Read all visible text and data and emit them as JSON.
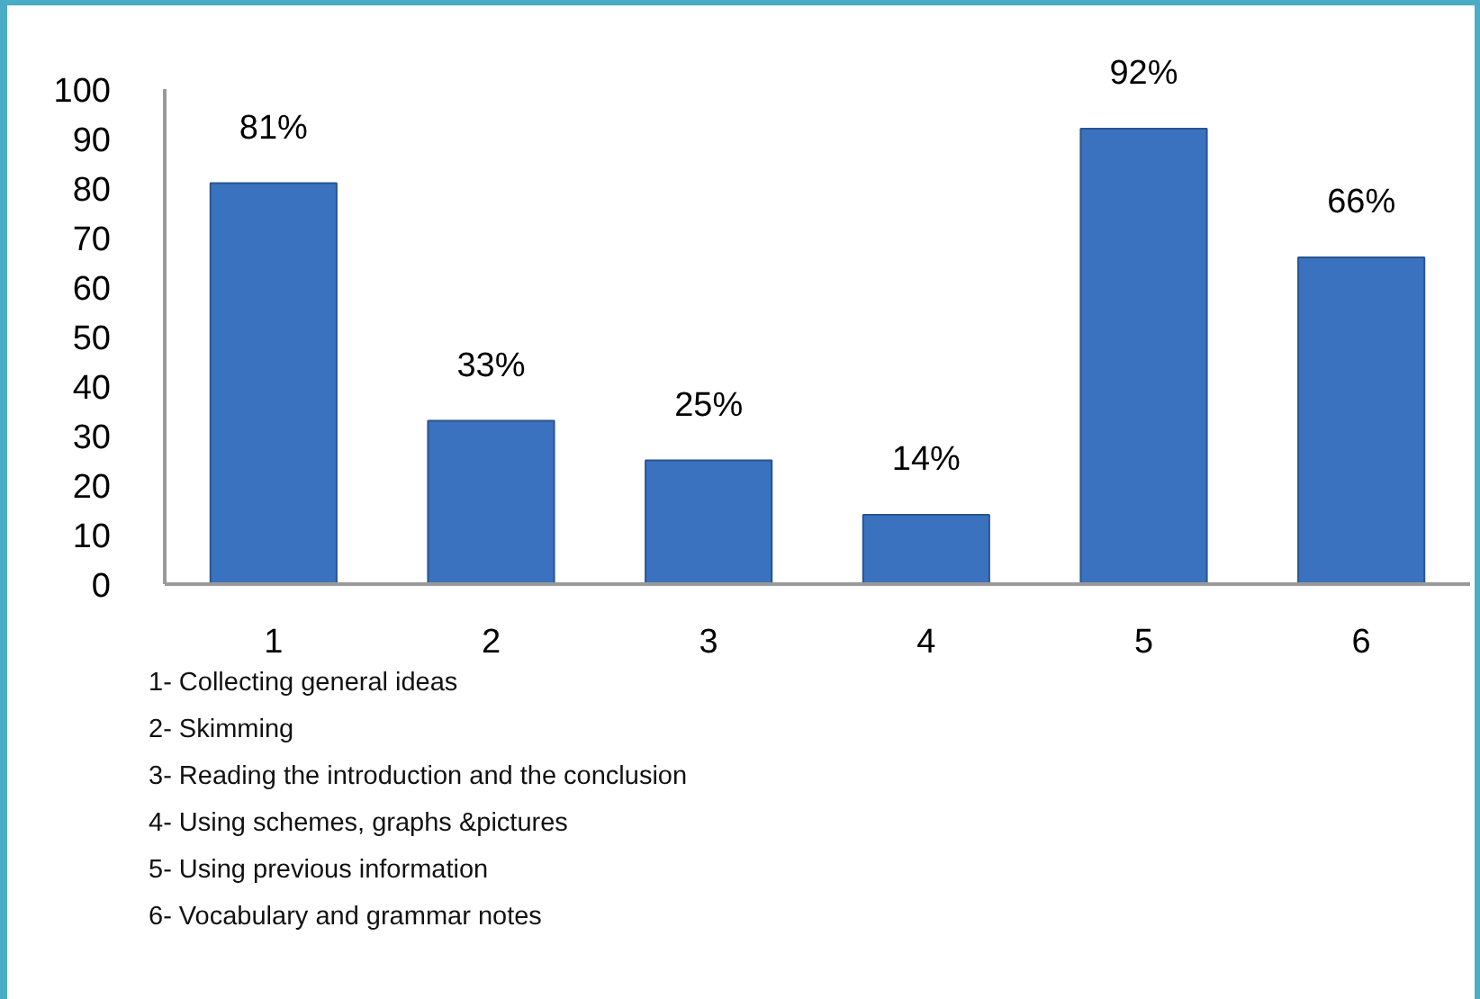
{
  "chart_data": {
    "type": "bar",
    "categories": [
      "1",
      "2",
      "3",
      "4",
      "5",
      "6"
    ],
    "values": [
      81,
      33,
      25,
      14,
      92,
      66
    ],
    "value_labels": [
      "81%",
      "33%",
      "25%",
      "14%",
      "92%",
      "66%"
    ],
    "color": "#3b72bf",
    "ylim": [
      0,
      100
    ],
    "yticks": [
      0,
      10,
      20,
      30,
      40,
      50,
      60,
      70,
      80,
      90,
      100
    ],
    "grid": false,
    "annotations": [
      "1- Collecting general ideas",
      "2- Skimming",
      "3- Reading the introduction and the conclusion",
      "4- Using schemes, graphs &pictures",
      "5- Using previous information",
      "6- Vocabulary and grammar notes"
    ]
  }
}
